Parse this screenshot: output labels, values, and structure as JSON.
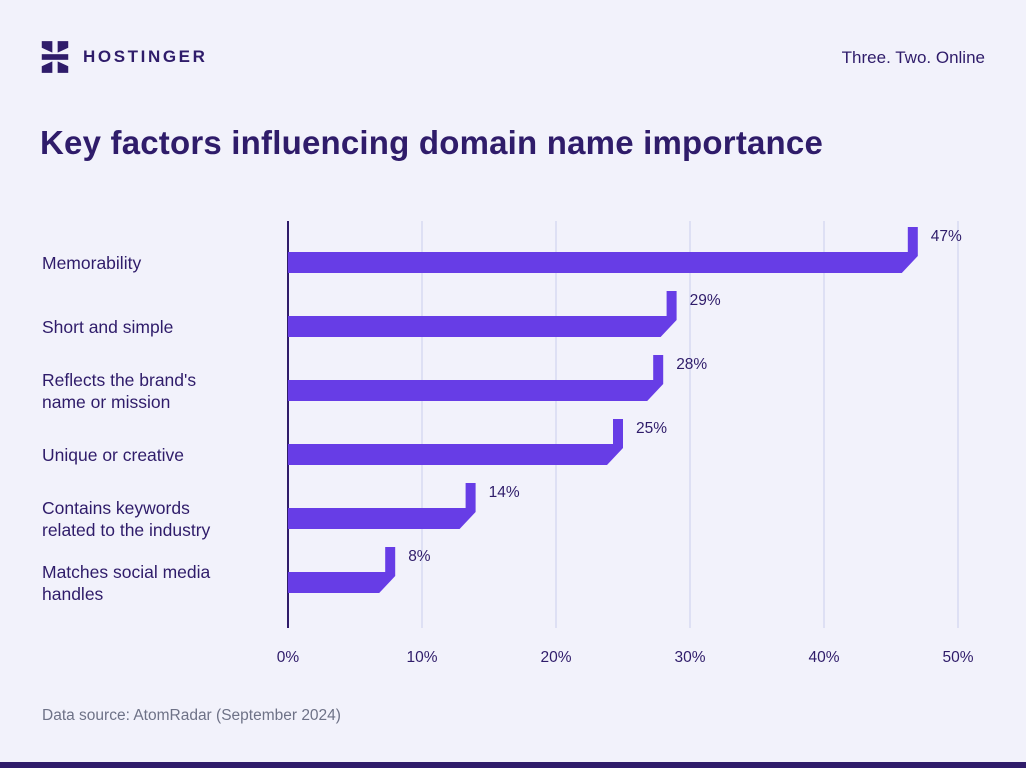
{
  "header": {
    "brand": "HOSTINGER",
    "logo_icon": "hostinger-h-logo",
    "tagline": "Three. Two. Online"
  },
  "title": "Key factors influencing domain name importance",
  "chart_data": {
    "type": "bar",
    "orientation": "horizontal",
    "title": "Key factors influencing domain name importance",
    "categories": [
      "Memorability",
      "Short and simple",
      "Reflects the brand's name or mission",
      "Unique or creative",
      "Contains keywords related to the industry",
      "Matches social media handles"
    ],
    "values": [
      47,
      29,
      28,
      25,
      14,
      8
    ],
    "value_labels": [
      "47%",
      "29%",
      "28%",
      "25%",
      "14%",
      "8%"
    ],
    "x_ticks": [
      0,
      10,
      20,
      30,
      40,
      50
    ],
    "x_tick_labels": [
      "0%",
      "10%",
      "20%",
      "30%",
      "40%",
      "50%"
    ],
    "xlim": [
      0,
      50
    ],
    "xlabel": "",
    "ylabel": "",
    "grid": "vertical",
    "legend": "none",
    "bar_color": "#673DE6"
  },
  "footer": {
    "source": "Data source: AtomRadar (September 2024)"
  },
  "colors": {
    "accent": "#673DE6",
    "heading": "#2F1C6A",
    "grid": "#D7DAF2",
    "muted": "#6E7287",
    "background": "#F2F2FB",
    "bottom_bar": "#2F1C6A"
  }
}
